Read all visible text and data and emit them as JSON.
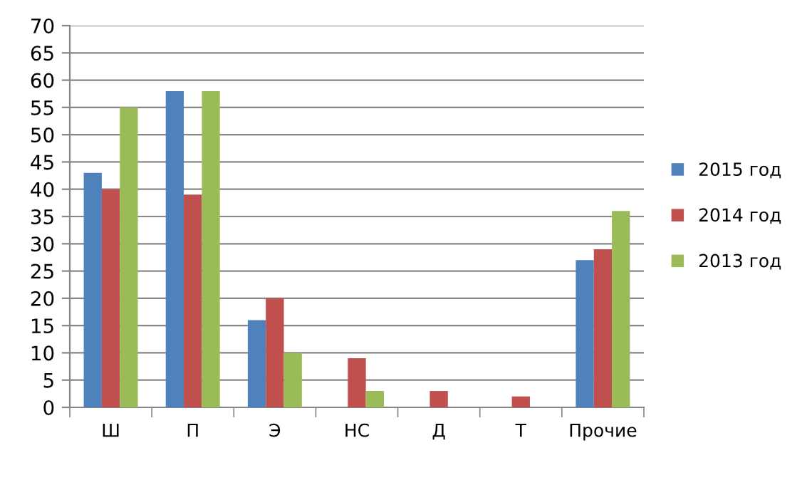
{
  "chart_data": {
    "type": "bar",
    "categories": [
      "Ш",
      "П",
      "Э",
      "НС",
      "Д",
      "Т",
      "Прочие"
    ],
    "series": [
      {
        "name": "2015 год",
        "color": "#4f81bd",
        "values": [
          43,
          58,
          16,
          null,
          null,
          null,
          27
        ]
      },
      {
        "name": "2014 год",
        "color": "#c0504d",
        "values": [
          40,
          39,
          20,
          9,
          3,
          2,
          29
        ]
      },
      {
        "name": "2013 год",
        "color": "#9bbb59",
        "values": [
          55,
          58,
          10,
          3,
          null,
          null,
          36
        ]
      }
    ],
    "ylim": [
      0,
      70
    ],
    "yticks": [
      0,
      5,
      10,
      15,
      20,
      25,
      30,
      35,
      40,
      45,
      50,
      55,
      60,
      65,
      70
    ],
    "grid": "y",
    "legend": "right"
  }
}
